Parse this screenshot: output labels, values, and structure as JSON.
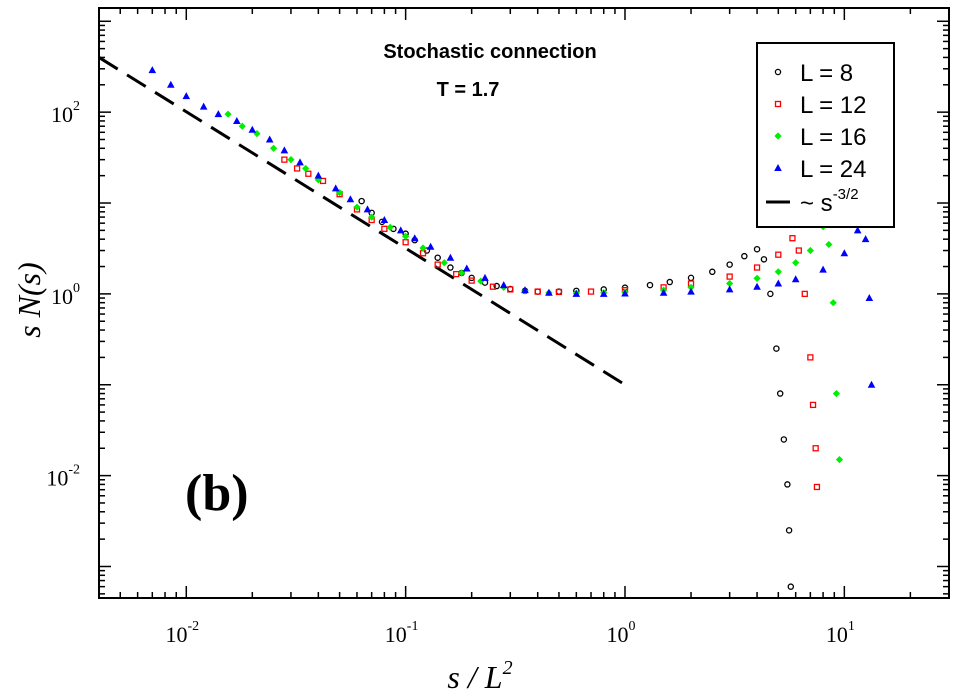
{
  "chart_data": {
    "type": "scatter",
    "title": "Stochastic connection",
    "subtitle": "T = 1.7",
    "panel_label": "(b)",
    "xlabel": "s / L",
    "xlabel_sup": "2",
    "ylabel": "s N(s)",
    "xscale": "log",
    "yscale": "log",
    "xlim": [
      0.004,
      30
    ],
    "ylim": [
      0.00045,
      1400
    ],
    "x_ticks": [
      {
        "value": 0.01,
        "base": "10",
        "exp": "-2"
      },
      {
        "value": 0.1,
        "base": "10",
        "exp": "-1"
      },
      {
        "value": 1,
        "base": "10",
        "exp": "0"
      },
      {
        "value": 10,
        "base": "10",
        "exp": "1"
      }
    ],
    "y_ticks": [
      {
        "value": 0.01,
        "base": "10",
        "exp": "-2"
      },
      {
        "value": 1,
        "base": "10",
        "exp": "0"
      },
      {
        "value": 100,
        "base": "10",
        "exp": "2"
      }
    ],
    "legend_position": "top-right",
    "series": [
      {
        "name": "L = 8",
        "color": "#000000",
        "marker": "circle",
        "x": [
          0.063,
          0.07,
          0.078,
          0.088,
          0.1,
          0.11,
          0.125,
          0.14,
          0.16,
          0.18,
          0.2,
          0.23,
          0.26,
          0.3,
          0.35,
          0.4,
          0.5,
          0.6,
          0.8,
          1.0,
          1.3,
          1.6,
          2.0,
          2.5,
          3.0,
          3.5,
          4.0,
          4.3,
          4.6,
          4.9,
          5.1,
          5.3,
          5.5,
          5.6,
          5.7
        ],
        "y": [
          10.5,
          7.8,
          6.2,
          5.2,
          4.6,
          3.9,
          3.0,
          2.5,
          1.95,
          1.7,
          1.5,
          1.33,
          1.22,
          1.13,
          1.08,
          1.06,
          1.06,
          1.08,
          1.12,
          1.17,
          1.25,
          1.35,
          1.5,
          1.75,
          2.1,
          2.6,
          3.1,
          2.4,
          1.0,
          0.25,
          0.08,
          0.025,
          0.008,
          0.0025,
          0.0006
        ]
      },
      {
        "name": "L = 12",
        "color": "#ff0000",
        "marker": "square",
        "x": [
          0.028,
          0.032,
          0.036,
          0.042,
          0.05,
          0.06,
          0.07,
          0.08,
          0.1,
          0.12,
          0.14,
          0.17,
          0.2,
          0.25,
          0.3,
          0.4,
          0.5,
          0.7,
          1.0,
          1.5,
          2.0,
          3.0,
          4.0,
          5.0,
          5.8,
          6.2,
          6.6,
          7.0,
          7.2,
          7.4,
          7.5
        ],
        "y": [
          30,
          24,
          21,
          17.5,
          12.5,
          8.5,
          6.5,
          5.2,
          3.7,
          2.8,
          2.1,
          1.65,
          1.4,
          1.2,
          1.12,
          1.06,
          1.05,
          1.06,
          1.1,
          1.18,
          1.3,
          1.55,
          1.95,
          2.7,
          4.1,
          3.0,
          1.0,
          0.2,
          0.06,
          0.02,
          0.0075
        ]
      },
      {
        "name": "L = 16",
        "color": "#00ee00",
        "marker": "diamond",
        "x": [
          0.0155,
          0.018,
          0.021,
          0.025,
          0.03,
          0.035,
          0.04,
          0.05,
          0.06,
          0.07,
          0.085,
          0.1,
          0.12,
          0.15,
          0.18,
          0.22,
          0.28,
          0.35,
          0.45,
          0.6,
          0.8,
          1.0,
          1.5,
          2.0,
          3.0,
          4.0,
          5.0,
          6.0,
          7.0,
          8.0,
          8.5,
          8.9,
          9.2,
          9.5
        ],
        "y": [
          95,
          70,
          58,
          40,
          30,
          24,
          18,
          13,
          9,
          7,
          5.4,
          4.3,
          3.2,
          2.2,
          1.7,
          1.38,
          1.18,
          1.08,
          1.03,
          1.02,
          1.03,
          1.05,
          1.1,
          1.18,
          1.3,
          1.48,
          1.75,
          2.2,
          3.0,
          5.5,
          3.5,
          0.8,
          0.08,
          0.015
        ]
      },
      {
        "name": "L = 24",
        "color": "#0000ff",
        "marker": "triangle",
        "x": [
          0.007,
          0.0085,
          0.01,
          0.012,
          0.014,
          0.017,
          0.02,
          0.024,
          0.028,
          0.033,
          0.04,
          0.048,
          0.056,
          0.067,
          0.08,
          0.095,
          0.11,
          0.13,
          0.16,
          0.19,
          0.23,
          0.28,
          0.35,
          0.45,
          0.6,
          0.8,
          1.0,
          1.5,
          2.0,
          3.0,
          4.0,
          5.0,
          6.0,
          8.0,
          10.0,
          11.5,
          12.0,
          12.5,
          13.0,
          13.3
        ],
        "y": [
          290,
          200,
          150,
          115,
          95,
          80,
          64,
          50,
          38,
          28,
          20,
          14.5,
          11,
          8.5,
          6.5,
          5.0,
          4.1,
          3.3,
          2.5,
          1.9,
          1.5,
          1.25,
          1.1,
          1.03,
          1.0,
          1.0,
          1.01,
          1.03,
          1.06,
          1.12,
          1.2,
          1.3,
          1.45,
          1.85,
          2.8,
          5.0,
          8.0,
          4.0,
          0.9,
          0.1
        ]
      }
    ],
    "reference_line": {
      "name": "~ s",
      "name_sup": "-3/2",
      "color": "#000000",
      "style": "dashed",
      "x": [
        0.004,
        1.0
      ],
      "y": [
        400,
        0.1
      ]
    }
  }
}
